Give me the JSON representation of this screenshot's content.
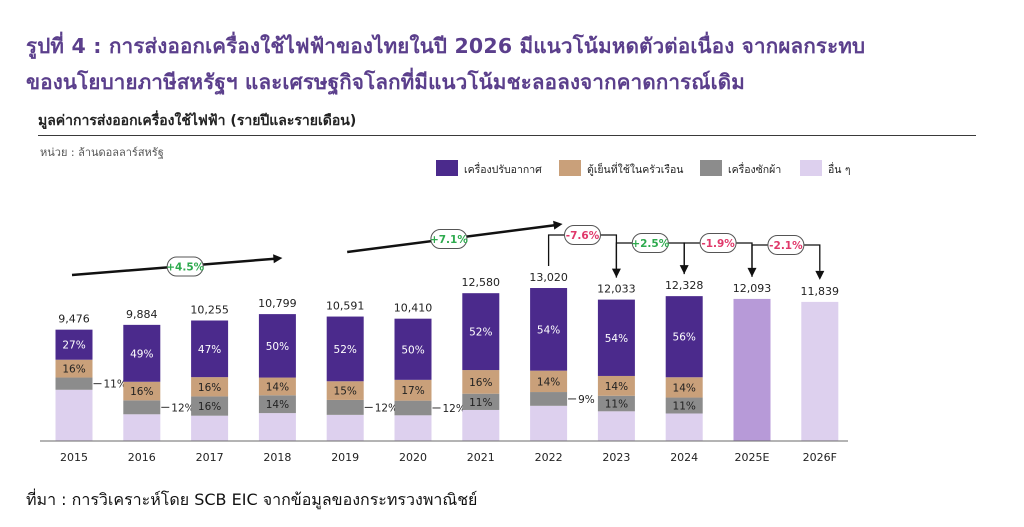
{
  "header": {
    "title_line1": "รูปที่ 4 : การส่งออกเครื่องใช้ไฟฟ้าของไทยในปี 2026 มีแนวโน้มหดตัวต่อเนื่อง จากผลกระทบ",
    "title_line2": "ของนโยบายภาษีสหรัฐฯ และเศรษฐกิจโลกที่มีแนวโน้มชะลอลงจากคาดการณ์เดิม"
  },
  "chart_data": {
    "type": "bar",
    "title": "มูลค่าการส่งออกเครื่องใช้ไฟฟ้า (รายปีและรายเดือน)",
    "unit": "หน่วย : ล้านดอลลาร์สหรัฐ",
    "categories": [
      "2015",
      "2016",
      "2017",
      "2018",
      "2019",
      "2020",
      "2021",
      "2022",
      "2023",
      "2024",
      "2025E",
      "2026F"
    ],
    "totals": [
      9476,
      9884,
      10255,
      10799,
      10591,
      10410,
      12580,
      13020,
      12033,
      12328,
      12093,
      11839
    ],
    "total_labels": [
      "9,476",
      "9,884",
      "10,255",
      "10,799",
      "10,591",
      "10,410",
      "12,580",
      "13,020",
      "12,033",
      "12,328",
      "12,093",
      "11,839"
    ],
    "series": [
      {
        "name": "เครื่องปรับอากาศ",
        "color": "#4b2a8c",
        "shares": [
          27,
          49,
          47,
          50,
          52,
          50,
          52,
          54,
          54,
          56,
          null,
          null
        ]
      },
      {
        "name": "ตู้เย็นที่ใช้ในครัวเรือน",
        "color": "#c9a07a",
        "shares": [
          16,
          16,
          16,
          14,
          15,
          17,
          16,
          14,
          14,
          14,
          null,
          null
        ]
      },
      {
        "name": "เครื่องซักผ้า",
        "color": "#8c8c8c",
        "shares": [
          11,
          12,
          16,
          14,
          12,
          12,
          11,
          9,
          11,
          11,
          null,
          null
        ]
      },
      {
        "name": "อื่น ๆ",
        "color": "#ddd0ee",
        "shares": [
          null,
          null,
          null,
          null,
          null,
          null,
          null,
          null,
          null,
          null,
          null,
          null
        ]
      }
    ],
    "forecast_colors": {
      "2025E": "#b79ad8",
      "2026F": "#ddd0ee"
    },
    "external_share_labels": {
      "2015": "11%",
      "2016": "12%",
      "2019": "12%",
      "2020": "12%",
      "2022": "9%"
    },
    "growth_annotations": [
      {
        "label": "+4.5%",
        "period": "2015-2018",
        "color": "#2eaa4e"
      },
      {
        "label": "+7.1%",
        "period": "2019-2022",
        "color": "#2eaa4e"
      },
      {
        "label": "-7.6%",
        "period": "2022-2023",
        "color": "#e0386a"
      },
      {
        "label": "+2.5%",
        "period": "2023-2024",
        "color": "#2eaa4e"
      },
      {
        "label": "-1.9%",
        "period": "2024-2025E",
        "color": "#e0386a"
      },
      {
        "label": "-2.1%",
        "period": "2025E-2026F",
        "color": "#e0386a"
      }
    ],
    "legend_position": "top-right",
    "grid": false
  },
  "footer": {
    "source": "ที่มา : การวิเคราะห์โดย SCB EIC จากข้อมูลของกระทรวงพาณิชย์"
  }
}
